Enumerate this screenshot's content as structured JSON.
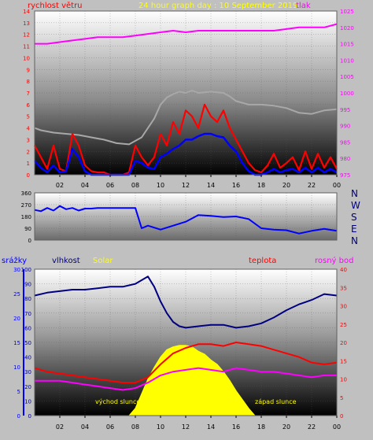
{
  "palette": {
    "background": "#c0c0c0",
    "wind_speed": "#ff0000",
    "wind_gust": "#0000ff",
    "pressure": "#ff00ff",
    "wind_trend": "#a8a8a8",
    "wind_direction": "#0000ff",
    "humidity": "#000080",
    "temperature": "#ff0000",
    "dew_point": "#ff00ff",
    "solar": "#ffff00",
    "rain_axis": "#0000ff",
    "tick_text": "#000000"
  },
  "labels": {
    "wind_speed": "rychlost větru",
    "title": "24 hour graph day : 10 September 2019",
    "pressure": "tlak",
    "compass": [
      "N",
      "W",
      "S",
      "E",
      "N"
    ],
    "rain": "srážky",
    "humidity": "vlhkost",
    "solar": "Solar",
    "temperature": "teplota",
    "dew_point": "rosný bod",
    "sunrise": "východ slunce",
    "sunset": "západ slunce"
  },
  "chart_data": [
    {
      "type": "line",
      "ylabel": "rychlost větru",
      "y2label": "tlak",
      "x_ticks": [
        "02",
        "04",
        "06",
        "08",
        "10",
        "12",
        "14",
        "16",
        "18",
        "20",
        "22",
        "00"
      ],
      "ylim": [
        0,
        14
      ],
      "y_ticks": [
        "0",
        "1",
        "2",
        "3",
        "4",
        "5",
        "6",
        "7",
        "8",
        "9",
        "10",
        "11",
        "12",
        "13",
        "14"
      ],
      "y2lim": [
        975,
        1025
      ],
      "y2_ticks": [
        "975",
        "980",
        "985",
        "990",
        "995",
        "1000",
        "1005",
        "1010",
        "1015",
        "1020",
        "1025"
      ],
      "series": [
        {
          "id": "wind_trend",
          "x": [
            0,
            0.5,
            1.5,
            2.5,
            3.5,
            4.5,
            5.5,
            6.5,
            7.5,
            8.5,
            9.5,
            10,
            10.5,
            11,
            11.5,
            12,
            12.5,
            13,
            14,
            15,
            15.5,
            16,
            17,
            18,
            19,
            20,
            21,
            22,
            23,
            24
          ],
          "values": [
            4,
            3.8,
            3.6,
            3.5,
            3.4,
            3.2,
            3,
            2.7,
            2.6,
            3.2,
            4.8,
            6,
            6.6,
            6.9,
            7.1,
            7,
            7.2,
            7,
            7.1,
            7,
            6.7,
            6.3,
            6,
            6,
            5.9,
            5.7,
            5.3,
            5.2,
            5.5,
            5.6
          ]
        },
        {
          "id": "wind_speed",
          "x": [
            0,
            0.5,
            1,
            1.5,
            2,
            2.5,
            3,
            3.5,
            4,
            4.5,
            5,
            5.5,
            6,
            6.5,
            7,
            7.5,
            8,
            8.5,
            9,
            9.5,
            10,
            10.5,
            11,
            11.5,
            12,
            12.5,
            13,
            13.5,
            14,
            14.5,
            15,
            15.5,
            16,
            16.5,
            17,
            17.5,
            18,
            18.5,
            19,
            19.5,
            20,
            20.5,
            21,
            21.5,
            22,
            22.5,
            23,
            23.5,
            24
          ],
          "values": [
            2.5,
            1.5,
            0.5,
            2.5,
            0.5,
            0.3,
            3.5,
            2.5,
            0.8,
            0.3,
            0.2,
            0.2,
            0,
            0,
            0,
            0.2,
            2.5,
            1.5,
            0.8,
            1.5,
            3.5,
            2.5,
            4.5,
            3.5,
            5.5,
            5,
            4,
            6,
            5,
            4.5,
            5.5,
            4,
            3,
            2,
            1,
            0.4,
            0.2,
            0.8,
            1.8,
            0.6,
            1,
            1.5,
            0.4,
            2,
            0.5,
            1.8,
            0.6,
            1.5,
            0.5
          ]
        },
        {
          "id": "wind_gust",
          "x": [
            0,
            0.5,
            1,
            1.5,
            2,
            2.5,
            3,
            3.5,
            4,
            4.5,
            5,
            5.5,
            6,
            6.5,
            7,
            7.5,
            8,
            8.5,
            9,
            9.5,
            10,
            10.5,
            11,
            11.5,
            12,
            12.5,
            13,
            13.5,
            14,
            14.5,
            15,
            15.5,
            16,
            16.5,
            17,
            17.5,
            18,
            18.5,
            19,
            19.5,
            20,
            20.5,
            21,
            21.5,
            22,
            22.5,
            23,
            23.5,
            24
          ],
          "values": [
            1.2,
            0.6,
            0.2,
            0.8,
            0.2,
            0.3,
            2.2,
            1.5,
            0.3,
            0,
            0,
            0,
            0,
            0,
            0,
            0,
            1.2,
            1,
            0.6,
            0.5,
            1.5,
            1.8,
            2.2,
            2.5,
            3,
            3,
            3.3,
            3.5,
            3.5,
            3.3,
            3.2,
            2.5,
            2,
            1,
            0.3,
            0,
            0,
            0.2,
            0.5,
            0.2,
            0.4,
            0.5,
            0.2,
            0.6,
            0.2,
            0.6,
            0.2,
            0.5,
            0.2
          ]
        },
        {
          "id": "pressure",
          "axis": "y2",
          "x": [
            0,
            1,
            2,
            3,
            4,
            5,
            6,
            7,
            8,
            9,
            10,
            11,
            12,
            13,
            14,
            15,
            16,
            17,
            18,
            19,
            20,
            21,
            22,
            23,
            24
          ],
          "values": [
            1015,
            1015,
            1015.5,
            1016,
            1016.5,
            1017,
            1017,
            1017,
            1017.5,
            1018,
            1018.5,
            1019,
            1018.5,
            1019,
            1019,
            1019,
            1019,
            1019,
            1019,
            1019,
            1019.5,
            1020,
            1020,
            1020,
            1021
          ]
        }
      ]
    },
    {
      "type": "line",
      "ylim": [
        0,
        360
      ],
      "y_ticks": [
        "0",
        "90",
        "180",
        "270",
        "360"
      ],
      "series": [
        {
          "id": "wind_direction",
          "x": [
            0,
            0.5,
            1,
            1.5,
            2,
            2.5,
            3,
            3.5,
            4,
            4.5,
            5,
            6,
            7,
            8,
            8.5,
            9,
            10,
            11,
            12,
            13,
            14,
            15,
            16,
            17,
            18,
            19,
            20,
            21,
            22,
            23,
            24
          ],
          "values": [
            230,
            220,
            245,
            225,
            260,
            235,
            245,
            225,
            240,
            240,
            245,
            245,
            245,
            245,
            90,
            110,
            80,
            110,
            140,
            190,
            185,
            175,
            180,
            160,
            90,
            80,
            75,
            50,
            70,
            85,
            70
          ]
        }
      ]
    },
    {
      "type": "line",
      "x_ticks": [
        "02",
        "04",
        "06",
        "08",
        "10",
        "12",
        "14",
        "16",
        "18",
        "20",
        "22",
        "00"
      ],
      "rain_ylim": [
        0,
        30
      ],
      "rain_ticks": [
        "0",
        "5",
        "10",
        "15",
        "20",
        "25",
        "30"
      ],
      "ylim": [
        0,
        100
      ],
      "y_ticks": [
        "0",
        "10",
        "20",
        "30",
        "40",
        "50",
        "60",
        "70",
        "80",
        "90",
        "100"
      ],
      "y2lim": [
        0,
        40
      ],
      "y2_ticks": [
        "0",
        "5",
        "10",
        "15",
        "20",
        "25",
        "30",
        "35",
        "40"
      ],
      "series": [
        {
          "id": "solar",
          "x": [
            7.5,
            8,
            8.5,
            9,
            9.5,
            10,
            10.5,
            11,
            11.5,
            12,
            12.5,
            13,
            13.5,
            14,
            14.5,
            15,
            15.5,
            16,
            16.5,
            17,
            17.5
          ],
          "values": [
            0,
            5,
            15,
            25,
            33,
            40,
            45,
            47,
            48,
            48,
            47,
            44,
            42,
            38,
            35,
            30,
            24,
            17,
            11,
            5,
            0
          ]
        },
        {
          "id": "humidity",
          "x": [
            0,
            1,
            2,
            3,
            4,
            5,
            6,
            7,
            8,
            9,
            9.5,
            10,
            10.5,
            11,
            11.5,
            12,
            13,
            14,
            15,
            16,
            17,
            18,
            19,
            20,
            21,
            22,
            23,
            24
          ],
          "values": [
            82,
            84,
            85,
            86,
            86,
            87,
            88,
            88,
            90,
            95,
            88,
            78,
            70,
            64,
            61,
            60,
            61,
            62,
            62,
            60,
            61,
            63,
            67,
            72,
            76,
            79,
            83,
            82
          ]
        },
        {
          "id": "temperature",
          "x": [
            0,
            1,
            2,
            3,
            4,
            5,
            6,
            7,
            8,
            9,
            10,
            11,
            12,
            13,
            14,
            15,
            16,
            17,
            18,
            19,
            20,
            21,
            22,
            23,
            24
          ],
          "values": [
            13,
            12,
            11.5,
            11,
            10.5,
            10,
            9.5,
            9,
            9,
            10.5,
            14,
            17,
            18.5,
            19.5,
            19.5,
            19,
            20,
            19.5,
            19,
            18,
            17,
            16,
            14.5,
            14,
            14.5
          ]
        },
        {
          "id": "dew_point",
          "x": [
            0,
            1,
            2,
            3,
            4,
            5,
            6,
            7,
            8,
            9,
            10,
            11,
            12,
            13,
            14,
            15,
            16,
            17,
            18,
            19,
            20,
            21,
            22,
            23,
            24
          ],
          "values": [
            9.5,
            9.5,
            9.5,
            9,
            8.5,
            8,
            7.5,
            7,
            7.5,
            9,
            11,
            12,
            12.5,
            13,
            12.5,
            12,
            13,
            12.5,
            12,
            12,
            11.5,
            11,
            10.5,
            11,
            11
          ]
        }
      ]
    }
  ]
}
